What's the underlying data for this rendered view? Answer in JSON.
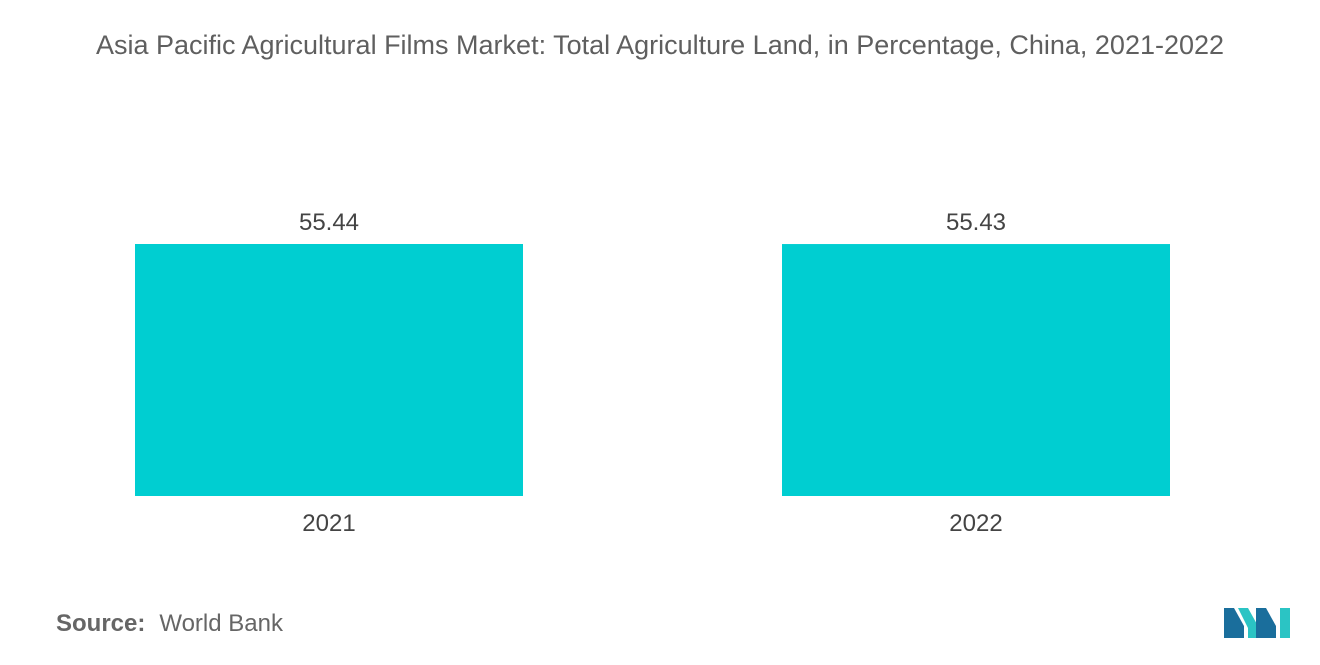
{
  "chart_data": {
    "type": "bar",
    "title": "Asia Pacific Agricultural Films Market: Total Agriculture Land, in Percentage, China, 2021-2022",
    "categories": [
      "2021",
      "2022"
    ],
    "values": [
      55.44,
      55.43
    ],
    "value_labels": [
      "55.44",
      "55.43"
    ],
    "xlabel": "",
    "ylabel": "",
    "grid": false,
    "legend": "none",
    "bar_color": "#00ced1"
  },
  "footer": {
    "source_label": "Source:",
    "source_value": "World Bank"
  },
  "logo": {
    "icon": "mordor-intelligence-logo",
    "colors": [
      "#1a6e9c",
      "#2bc4c4"
    ]
  }
}
